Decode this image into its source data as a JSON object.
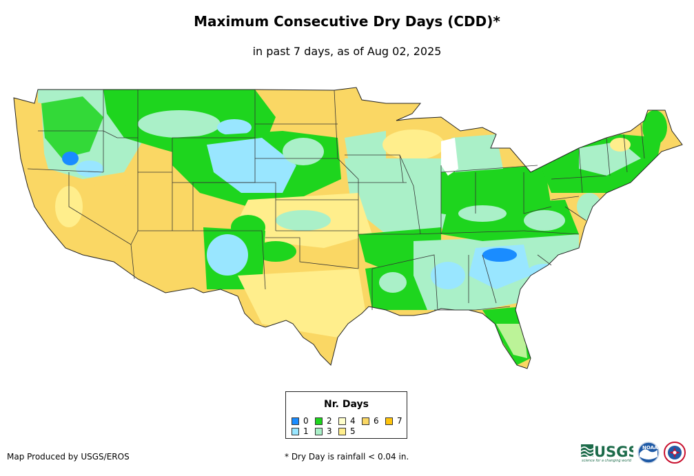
{
  "header": {
    "title": "Maximum Consecutive Dry Days (CDD)*",
    "subtitle": "in past 7 days, as of Aug 02, 2025"
  },
  "legend": {
    "title": "Nr. Days",
    "items": [
      {
        "label": "0",
        "color": "#1a8cff"
      },
      {
        "label": "1",
        "color": "#99e6ff"
      },
      {
        "label": "2",
        "color": "#1ed51e"
      },
      {
        "label": "3",
        "color": "#aaf0c8"
      },
      {
        "label": "4",
        "color": "#ffffcc"
      },
      {
        "label": "5",
        "color": "#ffee8c"
      },
      {
        "label": "6",
        "color": "#fad764"
      },
      {
        "label": "7",
        "color": "#ffc40c"
      }
    ]
  },
  "footer": {
    "credit": "Map Produced by USGS/EROS",
    "footnote": "* Dry Day is rainfall < 0.04 in."
  },
  "logos": {
    "usgs": {
      "text": "USGS",
      "tagline": "science for a changing world",
      "icon": "usgs-wave-icon"
    },
    "noaa": {
      "text": "NOAA",
      "icon": "noaa-bird-icon"
    },
    "nws": {
      "icon": "nws-emblem-icon"
    }
  }
}
